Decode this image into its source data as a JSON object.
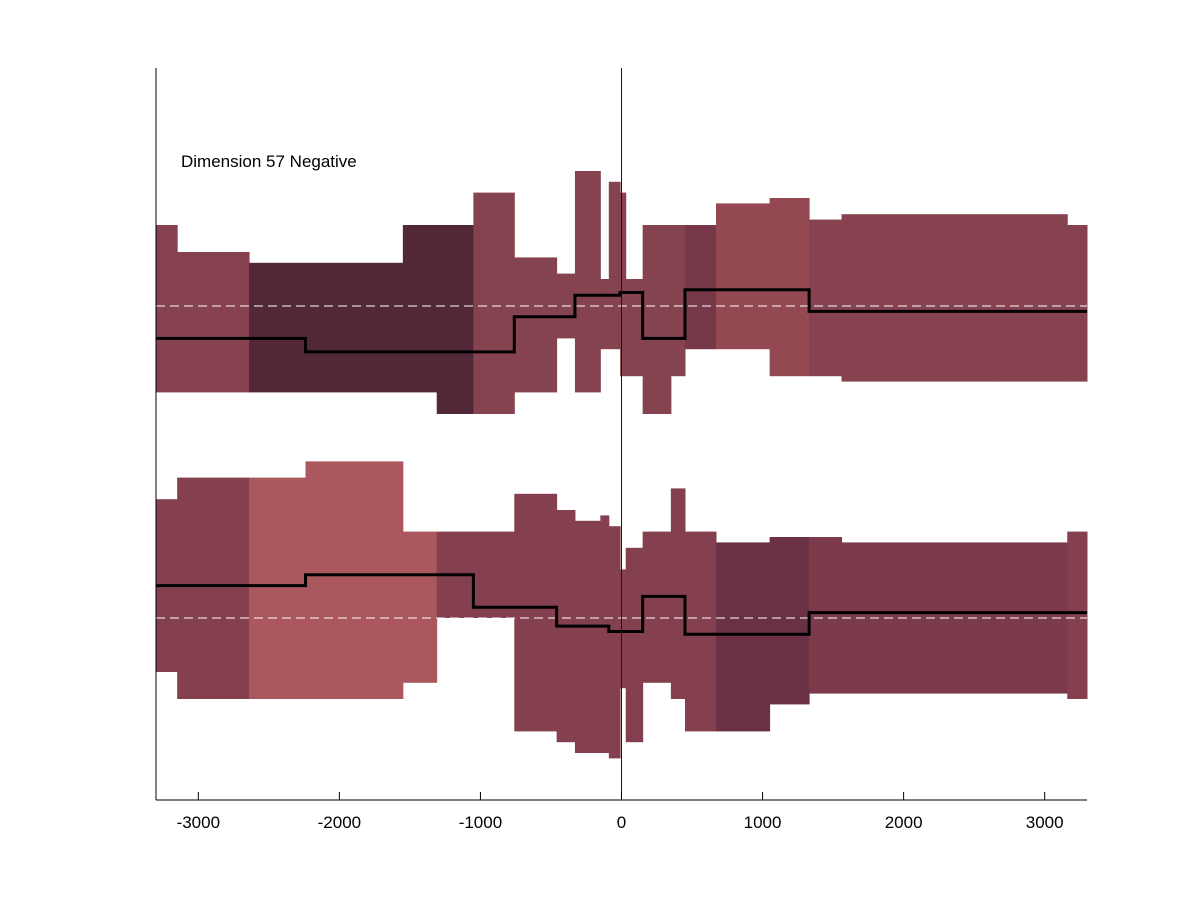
{
  "chart_data": {
    "type": "area",
    "annotation": "Dimension 57 Negative",
    "xlim": [
      -3300,
      3300
    ],
    "xticks": [
      -3000,
      -2000,
      -1000,
      0,
      1000,
      2000,
      3000
    ],
    "xtick_labels": [
      "-3000",
      "-2000",
      "-1000",
      "0",
      "1000",
      "2000",
      "3000"
    ],
    "yaxis_ticks": [],
    "vertical_line_x": 0,
    "vertical_line_color": "#0000cc",
    "mean_line_color": "#000000",
    "reference_line_color": "#ffffff",
    "bin_edges": [
      -3300,
      -3150,
      -2640,
      -2240,
      -1550,
      -1310,
      -1050,
      -760,
      -460,
      -330,
      -150,
      -90,
      -10,
      30,
      150,
      350,
      450,
      670,
      1050,
      1330,
      1560,
      2650,
      3160,
      3300
    ],
    "panels": [
      {
        "name": "top",
        "reference": 0,
        "lower": [
          -1.6,
          -1.6,
          -1.6,
          -1.6,
          -1.6,
          -2.0,
          -2.0,
          -1.6,
          -0.6,
          -1.6,
          -0.8,
          -0.8,
          -1.3,
          -1.3,
          -2.0,
          -1.3,
          -0.8,
          -0.8,
          -1.3,
          -1.3,
          -1.4,
          -1.4,
          -1.4
        ],
        "upper": [
          1.5,
          1.0,
          0.8,
          0.8,
          1.5,
          1.5,
          2.1,
          0.9,
          0.6,
          2.5,
          0.5,
          2.3,
          2.1,
          0.5,
          1.5,
          1.5,
          1.5,
          1.9,
          2.0,
          1.6,
          1.7,
          1.7,
          1.5
        ],
        "mean": [
          -0.6,
          -0.6,
          -0.6,
          -0.85,
          -0.85,
          -0.85,
          -0.85,
          -0.2,
          -0.2,
          0.2,
          0.2,
          0.2,
          0.25,
          0.25,
          -0.6,
          -0.6,
          0.3,
          0.3,
          0.3,
          -0.1,
          -0.1,
          -0.1,
          -0.1
        ],
        "shade": [
          "#86424f",
          "#86424f",
          "#522838",
          "#522838",
          "#522838",
          "#522838",
          "#85434f",
          "#85434f",
          "#85434f",
          "#85434f",
          "#85434f",
          "#85434f",
          "#85434f",
          "#85434f",
          "#85434f",
          "#85434f",
          "#77394a",
          "#944852",
          "#944852",
          "#86424f",
          "#86424f",
          "#86424f",
          "#86424f"
        ]
      },
      {
        "name": "bottom",
        "reference": 0,
        "lower": [
          -1.0,
          -1.5,
          -1.5,
          -1.5,
          -1.2,
          -0.0,
          -0.0,
          -2.1,
          -2.3,
          -2.5,
          -2.5,
          -2.6,
          -1.3,
          -2.3,
          -1.2,
          -1.5,
          -2.1,
          -2.1,
          -1.6,
          -1.4,
          -1.4,
          -1.4,
          -1.5
        ],
        "upper": [
          2.2,
          2.6,
          2.6,
          2.9,
          1.6,
          1.6,
          1.6,
          2.3,
          2.0,
          1.8,
          1.9,
          1.7,
          0.9,
          1.3,
          1.6,
          2.4,
          1.6,
          1.4,
          1.5,
          1.5,
          1.4,
          1.4,
          1.6
        ],
        "mean": [
          0.6,
          0.6,
          0.6,
          0.8,
          0.8,
          0.8,
          0.2,
          0.2,
          -0.15,
          -0.15,
          -0.15,
          -0.25,
          -0.25,
          -0.25,
          0.4,
          0.4,
          -0.3,
          -0.3,
          -0.3,
          0.1,
          0.1,
          0.1,
          0.1
        ],
        "shade": [
          "#84404e",
          "#84404e",
          "#ab575e",
          "#ab575e",
          "#ab575e",
          "#84404e",
          "#84404e",
          "#84404e",
          "#84404e",
          "#84404e",
          "#84404e",
          "#84404e",
          "#84404e",
          "#84404e",
          "#84404e",
          "#84404e",
          "#84404e",
          "#6a3044",
          "#6a3044",
          "#7b3b4a",
          "#7b3b4a",
          "#7b3b4a",
          "#84404e"
        ]
      }
    ]
  }
}
